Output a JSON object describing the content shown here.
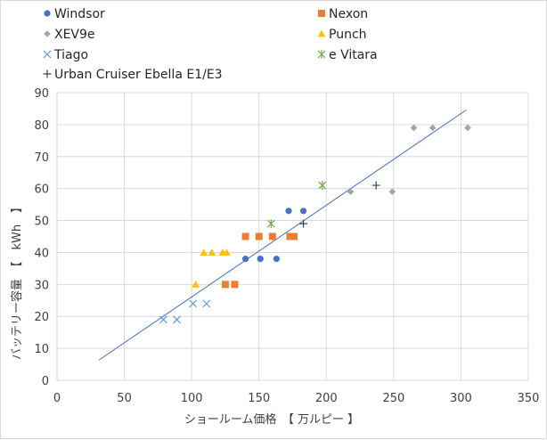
{
  "chart_data": {
    "type": "scatter",
    "xlabel": "ショールーム価格　【 万ルピー 】",
    "ylabel": "バッテリー容量　【　kWh　】",
    "xlim": [
      0,
      350
    ],
    "ylim": [
      0,
      90
    ],
    "xticks": [
      0,
      50,
      100,
      150,
      200,
      250,
      300,
      350
    ],
    "yticks": [
      0,
      10,
      20,
      30,
      40,
      50,
      60,
      70,
      80,
      90
    ],
    "grid": "horizontal and vertical",
    "legend_position": "top",
    "trendline": {
      "x": [
        31,
        304
      ],
      "y": [
        6.3,
        84.6
      ],
      "color": "#4472c4"
    },
    "series": [
      {
        "name": "Windsor",
        "marker": "circle",
        "color": "#4472c4",
        "points": [
          [
            140,
            38
          ],
          [
            151,
            38
          ],
          [
            163,
            38
          ],
          [
            172,
            53
          ],
          [
            183,
            53
          ]
        ]
      },
      {
        "name": "Nexon",
        "marker": "square",
        "color": "#ed7d31",
        "points": [
          [
            140,
            45
          ],
          [
            150,
            45
          ],
          [
            160,
            45
          ],
          [
            173,
            45
          ],
          [
            176,
            45
          ],
          [
            125,
            30
          ],
          [
            132,
            30
          ]
        ]
      },
      {
        "name": "XEV9e",
        "marker": "diamond",
        "color": "#a5a5a5",
        "points": [
          [
            218,
            59
          ],
          [
            249,
            59
          ],
          [
            265,
            79
          ],
          [
            279,
            79
          ],
          [
            305,
            79
          ]
        ]
      },
      {
        "name": "Punch",
        "marker": "triangle",
        "color": "#ffc000",
        "points": [
          [
            103,
            30
          ],
          [
            109,
            40
          ],
          [
            115,
            40
          ],
          [
            123,
            40
          ],
          [
            126,
            40
          ]
        ]
      },
      {
        "name": "Tiago",
        "marker": "x",
        "color": "#5b9bd5",
        "points": [
          [
            79,
            19
          ],
          [
            89,
            19
          ],
          [
            101,
            24
          ],
          [
            111,
            24
          ]
        ]
      },
      {
        "name": "e Vitara",
        "marker": "asterisk",
        "color": "#70ad47",
        "points": [
          [
            159,
            49
          ],
          [
            197,
            61
          ]
        ]
      },
      {
        "name": "Urban Cruiser Ebella E1/E3",
        "marker": "plus",
        "color": "#264478",
        "points": [
          [
            183,
            49
          ],
          [
            237,
            61
          ]
        ]
      }
    ]
  }
}
